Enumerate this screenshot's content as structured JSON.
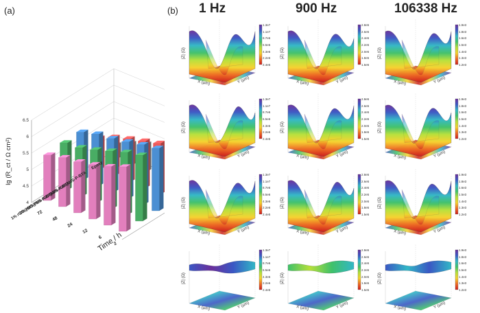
{
  "panels": {
    "a": "(a)",
    "b": "(b)"
  },
  "chart_data": [
    {
      "type": "bar",
      "panel": "(a)",
      "ylabel": "lg (R_ct / Ω cm²)",
      "xlabel": "Time / h",
      "ylim": [
        4,
        6.5
      ],
      "yticks": [
        "4",
        "4.5",
        "5",
        "5.5",
        "6",
        "6.5"
      ],
      "categories": [
        "72",
        "48",
        "24",
        "12",
        "6",
        "2"
      ],
      "series": [
        {
          "name": "1% rGO@MS-P",
          "color": "#e27fbd",
          "values": [
            5.38,
            5.49,
            5.55,
            5.65,
            5.78,
            5.96
          ]
        },
        {
          "name": "2% rGO@MS-P-BTA",
          "color": "#49ad64",
          "values": [
            5.44,
            5.48,
            5.6,
            5.75,
            5.9,
            6.0
          ]
        },
        {
          "name": "1% rGO@MS-P-BTA",
          "color": "#4b8fd3",
          "values": [
            5.45,
            5.58,
            5.63,
            5.72,
            5.82,
            5.9
          ]
        },
        {
          "name": "0.5% rGO@MS-P-BTA",
          "color": "#ef5a5a",
          "values": [
            4.96,
            5.17,
            5.31,
            5.43,
            5.55,
            5.77
          ]
        },
        {
          "name": "Epoxy",
          "color": "#8c8c8c",
          "values": [
            4.44,
            4.67,
            4.84,
            4.96,
            5.08,
            5.25
          ]
        }
      ]
    },
    {
      "type": "heatmap",
      "panel": "(b)",
      "columns": [
        "1 Hz",
        "900 Hz",
        "106338 Hz"
      ],
      "zlabel": "|Z| (Ω)",
      "xlabel": "X (μm)",
      "ylabel": "Y (μm)",
      "colorbar_ticks": [
        [
          "1.3e7",
          "1.1e7",
          "8.7e6",
          "6.5e6",
          "4.3e6",
          "2.2e6",
          "2.4e5"
        ],
        [
          "2.8e5",
          "2.6e5",
          "2.4e5",
          "2.2e5",
          "2.0e5",
          "1.8e5",
          "1.5e5"
        ],
        [
          "1.9e3",
          "1.8e3",
          "1.6e3",
          "1.5e3",
          "1.4e3",
          "1.3e3",
          "1.2e3"
        ]
      ],
      "rows": 4,
      "colormap": [
        "#cc1d1d",
        "#ee6a24",
        "#f6d22c",
        "#b6e039",
        "#3fc16a",
        "#31b7c6",
        "#3a57c4",
        "#6a2f9c"
      ]
    }
  ]
}
